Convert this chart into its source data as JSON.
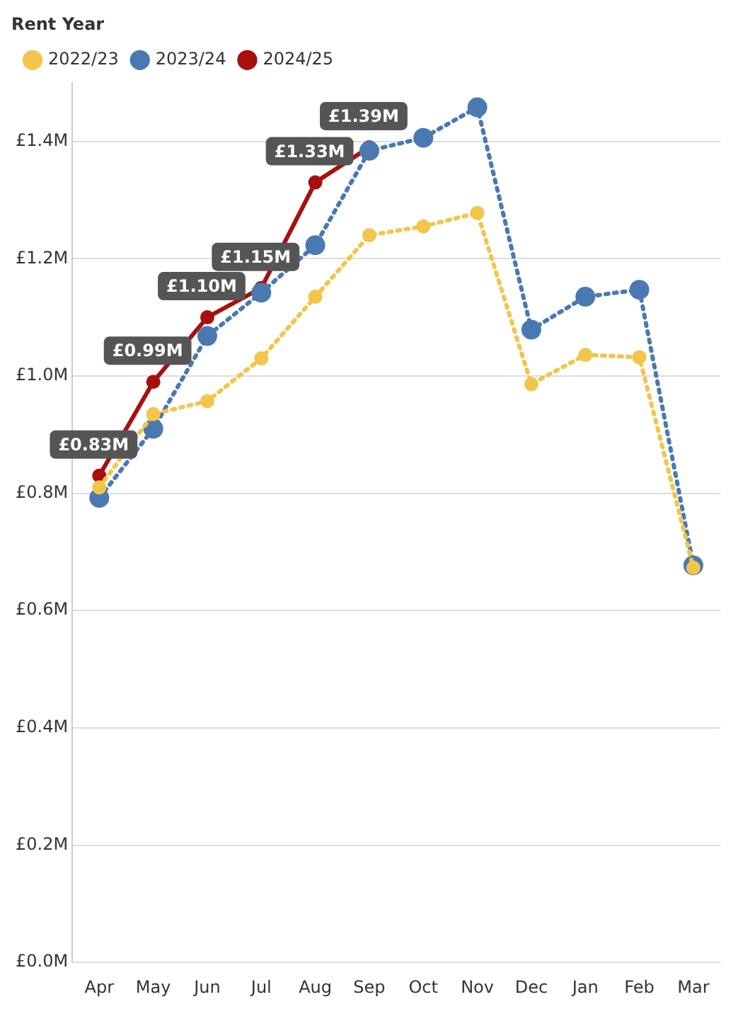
{
  "chart_data": {
    "type": "line",
    "legend_title": "Rent Year",
    "legend": "top left",
    "grid": "y",
    "marker": "circle",
    "categories": [
      "Apr",
      "May",
      "Jun",
      "Jul",
      "Aug",
      "Sep",
      "Oct",
      "Nov",
      "Dec",
      "Jan",
      "Feb",
      "Mar"
    ],
    "ylim": [
      0,
      1.5
    ],
    "yticks": [
      {
        "value": 0,
        "label": "£0.0M"
      },
      {
        "value": 0.2,
        "label": "£0.2M"
      },
      {
        "value": 0.4,
        "label": "£0.4M"
      },
      {
        "value": 0.6,
        "label": "£0.6M"
      },
      {
        "value": 0.8,
        "label": "£0.8M"
      },
      {
        "value": 1.0,
        "label": "£1.0M"
      },
      {
        "value": 1.2,
        "label": "£1.2M"
      },
      {
        "value": 1.4,
        "label": "£1.4M"
      }
    ],
    "series": [
      {
        "name": "2022/23",
        "color": "#f2c54b",
        "line_style": "dotted",
        "values": [
          0.81,
          0.935,
          0.957,
          1.03,
          1.135,
          1.24,
          1.255,
          1.278,
          0.986,
          1.036,
          1.032,
          0.673
        ]
      },
      {
        "name": "2023/24",
        "color": "#4a79b1",
        "line_style": "dotted",
        "values": [
          0.792,
          0.91,
          1.068,
          1.142,
          1.223,
          1.384,
          1.406,
          1.458,
          1.079,
          1.135,
          1.147,
          0.677
        ]
      },
      {
        "name": "2024/25",
        "color": "#a80f0f",
        "line_style": "solid",
        "values": [
          0.83,
          0.99,
          1.1,
          1.15,
          1.33,
          1.39,
          null,
          null,
          null,
          null,
          null,
          null
        ],
        "value_labels": [
          "£0.83M",
          "£0.99M",
          "£1.10M",
          "£1.15M",
          "£1.33M",
          "£1.39M",
          null,
          null,
          null,
          null,
          null,
          null
        ]
      }
    ]
  }
}
